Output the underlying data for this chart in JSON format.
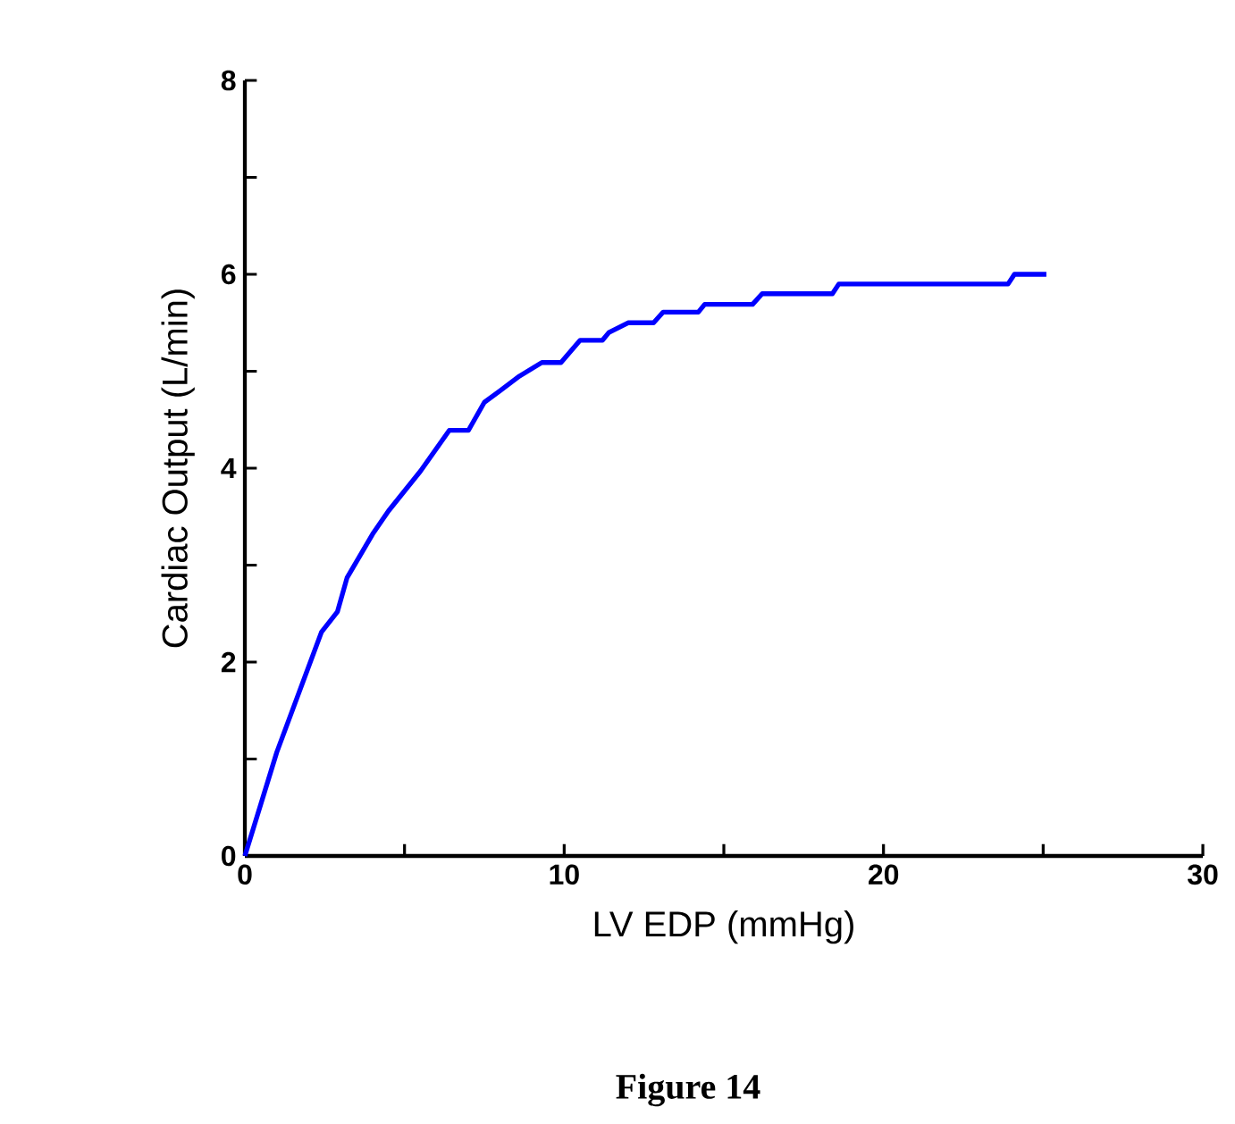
{
  "chart_data": {
    "type": "line",
    "xlabel": "LV EDP (mmHg)",
    "ylabel": "Cardiac Output (L/min)",
    "annotations": [
      "Figure 14"
    ],
    "xlim": [
      0,
      30
    ],
    "ylim": [
      0,
      8
    ],
    "xticks": [
      0,
      10,
      20,
      30
    ],
    "yticks": [
      0,
      2,
      4,
      6,
      8
    ],
    "grid": false,
    "marker": "none",
    "line_style": "solid",
    "series": [
      {
        "color": "#0000ff",
        "x": [
          0,
          1.0,
          1.7,
          2.4,
          2.9,
          3.2,
          4.0,
          4.5,
          5.5,
          6.4,
          7.0,
          7.5,
          8.0,
          8.6,
          9.3,
          9.9,
          10.5,
          11.2,
          11.4,
          12.0,
          12.8,
          13.1,
          14.2,
          14.4,
          15.9,
          16.2,
          18.4,
          18.6,
          23.9,
          24.1,
          25.1
        ],
        "values": [
          0,
          1.07,
          1.69,
          2.31,
          2.52,
          2.87,
          3.32,
          3.56,
          3.97,
          4.39,
          4.39,
          4.68,
          4.8,
          4.95,
          5.09,
          5.09,
          5.32,
          5.32,
          5.4,
          5.5,
          5.5,
          5.61,
          5.61,
          5.69,
          5.69,
          5.8,
          5.8,
          5.9,
          5.9,
          6.0,
          6.0
        ]
      }
    ]
  }
}
